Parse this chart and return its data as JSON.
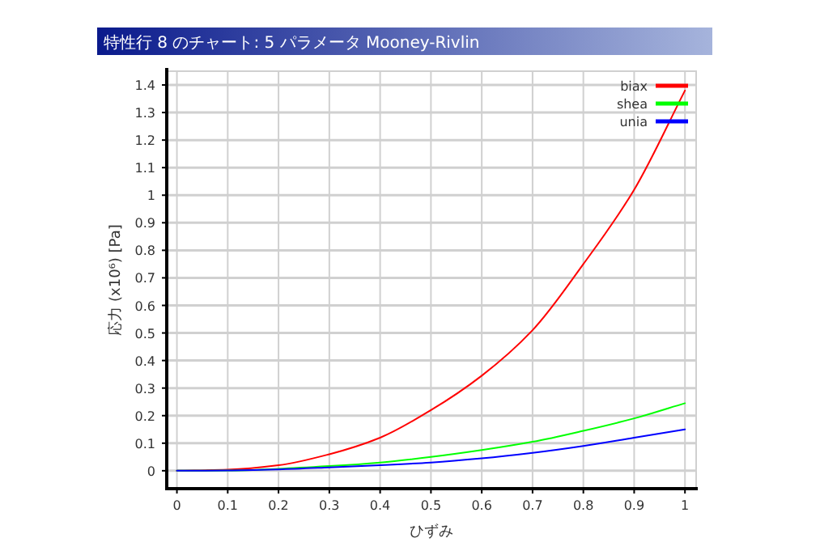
{
  "chart_data": {
    "type": "line",
    "title": "特性行 8 のチャート: 5 パラメータ Mooney-Rivlin",
    "xlabel": "ひずみ",
    "ylabel": "応力 (x10⁶) [Pa]",
    "x": [
      0,
      0.1,
      0.2,
      0.3,
      0.4,
      0.5,
      0.6,
      0.7,
      0.8,
      0.9,
      1.0
    ],
    "series": [
      {
        "name": "biax",
        "color": "#ff0000",
        "values": [
          0,
          0.004,
          0.02,
          0.06,
          0.12,
          0.22,
          0.345,
          0.51,
          0.75,
          1.02,
          1.38
        ]
      },
      {
        "name": "shea",
        "color": "#00ff00",
        "values": [
          0,
          0.001,
          0.007,
          0.017,
          0.03,
          0.05,
          0.075,
          0.105,
          0.145,
          0.19,
          0.245
        ]
      },
      {
        "name": "unia",
        "color": "#0000ff",
        "values": [
          0,
          0.001,
          0.005,
          0.012,
          0.02,
          0.03,
          0.045,
          0.065,
          0.09,
          0.12,
          0.15
        ]
      }
    ],
    "xlim": [
      -0.02,
      1.022
    ],
    "ylim": [
      -0.065,
      1.45
    ],
    "xticks": [
      0,
      0.1,
      0.2,
      0.3,
      0.4,
      0.5,
      0.6,
      0.7,
      0.8,
      0.9,
      1
    ],
    "yticks": [
      0,
      0.1,
      0.2,
      0.3,
      0.4,
      0.5,
      0.6,
      0.7,
      0.8,
      0.9,
      1,
      1.1,
      1.2,
      1.3,
      1.4
    ],
    "grid": true,
    "legend": "top right",
    "marker": "none",
    "line_style": "solid"
  }
}
